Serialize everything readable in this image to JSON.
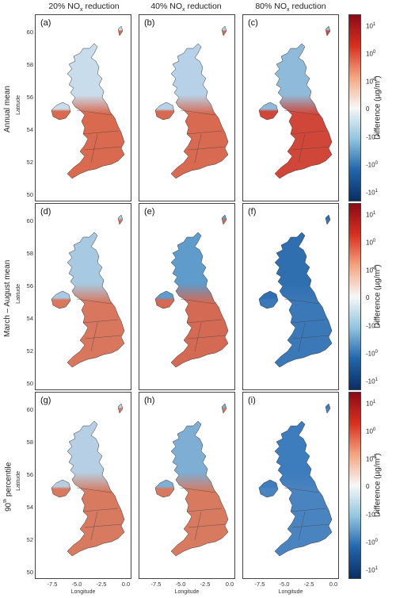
{
  "columns": [
    {
      "text": "20% NO",
      "sub": "x",
      "tail": " reduction"
    },
    {
      "text": "40% NO",
      "sub": "x",
      "tail": " reduction"
    },
    {
      "text": "80% NO",
      "sub": "x",
      "tail": " reduction"
    }
  ],
  "rows": [
    {
      "label": "Annual mean",
      "sup": "",
      "tail": ""
    },
    {
      "label": "March – August mean",
      "sup": "",
      "tail": ""
    },
    {
      "label": "90",
      "sup": "th",
      "tail": " percentile"
    }
  ],
  "panel_labels": [
    "(a)",
    "(b)",
    "(c)",
    "(d)",
    "(e)",
    "(f)",
    "(g)",
    "(h)",
    "(i)"
  ],
  "y_axis_label": "Latitude",
  "x_axis_label": "Longitude",
  "y_ticks": [
    "60",
    "58",
    "56",
    "54",
    "52",
    "50"
  ],
  "x_ticks": [
    "-7.5",
    "-5.0",
    "-2.5",
    "0.0"
  ],
  "colorbar": {
    "title": "Difference (µg/m",
    "title_sup": "3",
    "title_tail": ")",
    "ticks": [
      {
        "base": "10",
        "exp": "1"
      },
      {
        "base": "10",
        "exp": "0"
      },
      {
        "base": "10",
        "exp": "-1"
      },
      {
        "base": "0",
        "exp": ""
      },
      {
        "base": "-10",
        "exp": "-1"
      },
      {
        "base": "-10",
        "exp": "0"
      },
      {
        "base": "-10",
        "exp": "1"
      }
    ],
    "colors": [
      "#8b0a18",
      "#d7301f",
      "#f4a582",
      "#f7f7f7",
      "#92c5de",
      "#2166ac",
      "#0b2e63"
    ]
  },
  "panel_fill": {
    "a": {
      "north": "#c9dcec",
      "south": "#d9694f"
    },
    "b": {
      "north": "#b7d2e8",
      "south": "#d86a52"
    },
    "c": {
      "north": "#90bad9",
      "south": "#d0473a"
    },
    "d": {
      "north": "#a8c9e2",
      "south": "#d9775e"
    },
    "e": {
      "north": "#5f9bcb",
      "south": "#d46a54"
    },
    "f": {
      "north": "#2f6fb0",
      "south": "#3b78b8"
    },
    "g": {
      "north": "#b6cfe4",
      "south": "#d77a60"
    },
    "h": {
      "north": "#7eaed4",
      "south": "#d77a60"
    },
    "i": {
      "north": "#3d7cbd",
      "south": "#4a84c0"
    }
  }
}
